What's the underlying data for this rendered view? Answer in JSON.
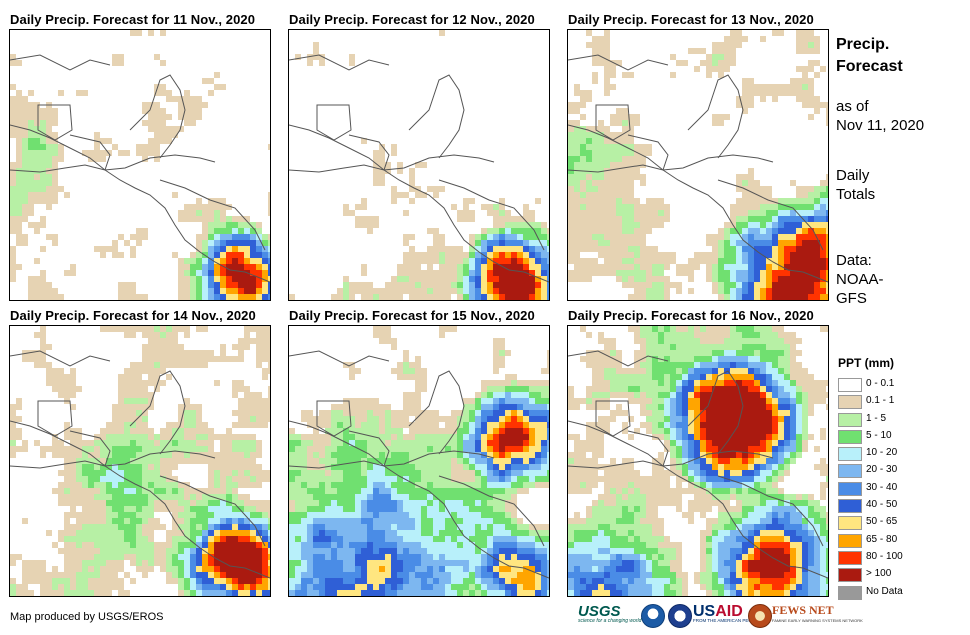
{
  "panels": [
    {
      "title": "Daily Precip. Forecast for 11 Nov., 2020",
      "day": 0
    },
    {
      "title": "Daily Precip. Forecast for 12 Nov., 2020",
      "day": 1
    },
    {
      "title": "Daily Precip. Forecast for 13 Nov., 2020",
      "day": 2
    },
    {
      "title": "Daily Precip. Forecast for 14 Nov., 2020",
      "day": 3
    },
    {
      "title": "Daily Precip. Forecast for 15 Nov., 2020",
      "day": 4
    },
    {
      "title": "Daily Precip. Forecast for 16 Nov., 2020",
      "day": 5
    }
  ],
  "sidebar": {
    "title_line1": "Precip.",
    "title_line2": "Forecast",
    "asof_line1": "as of",
    "asof_line2": "Nov 11, 2020",
    "totals_line1": "Daily",
    "totals_line2": "Totals",
    "data_line1": "Data:",
    "data_line2": "NOAA-",
    "data_line3": "GFS"
  },
  "legend": {
    "title": "PPT (mm)",
    "items": [
      {
        "label": "0 - 0.1",
        "color": "#ffffff"
      },
      {
        "label": "0.1 - 1",
        "color": "#e6d3b3"
      },
      {
        "label": "1 - 5",
        "color": "#b7f0a5"
      },
      {
        "label": "5 - 10",
        "color": "#70e070"
      },
      {
        "label": "10 - 20",
        "color": "#b8f0fa"
      },
      {
        "label": "20 - 30",
        "color": "#7db7f0"
      },
      {
        "label": "30 - 40",
        "color": "#4a8ce6"
      },
      {
        "label": "40 - 50",
        "color": "#2f5fd6"
      },
      {
        "label": "50 - 65",
        "color": "#ffe680"
      },
      {
        "label": "65 - 80",
        "color": "#ffa500"
      },
      {
        "label": "80 - 100",
        "color": "#ff3300"
      },
      {
        "label": "> 100",
        "color": "#aa1a10"
      },
      {
        "label": "No Data",
        "color": "#999999"
      }
    ]
  },
  "credit": "Map produced by USGS/EROS",
  "logos": {
    "usgs": "USGS",
    "usgs_tagline": "science for a changing world",
    "usaid_a": "US",
    "usaid_b": "AID",
    "usaid_tagline": "FROM THE AMERICAN PEOPLE",
    "fews": "FEWS NET",
    "fews_tagline": "FAMINE EARLY WARNING SYSTEMS NETWORK"
  }
}
